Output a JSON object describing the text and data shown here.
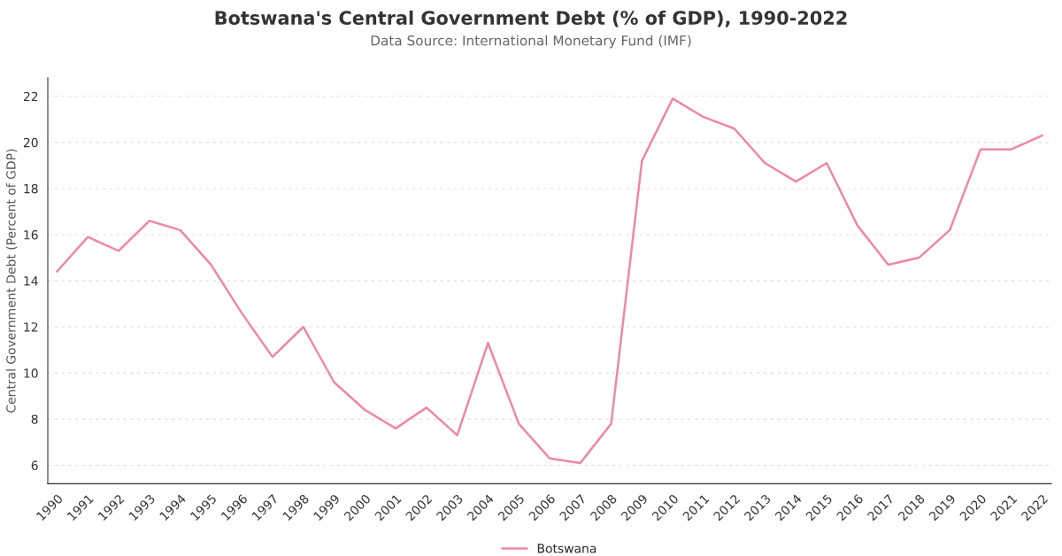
{
  "chart_data": {
    "type": "line",
    "title": "Botswana's Central Government Debt (% of GDP), 1990-2022",
    "subtitle": "Data Source: International Monetary Fund (IMF)",
    "ylabel": "Central Government Debt (Percent of GDP)",
    "categories": [
      "1990",
      "1991",
      "1992",
      "1993",
      "1994",
      "1995",
      "1996",
      "1997",
      "1998",
      "1999",
      "2000",
      "2001",
      "2002",
      "2003",
      "2004",
      "2005",
      "2006",
      "2007",
      "2008",
      "2009",
      "2010",
      "2011",
      "2012",
      "2013",
      "2014",
      "2015",
      "2016",
      "2017",
      "2018",
      "2019",
      "2020",
      "2021",
      "2022"
    ],
    "series": [
      {
        "name": "Botswana",
        "color": "#ef86aa",
        "values": [
          14.4,
          15.9,
          15.3,
          16.6,
          16.2,
          14.7,
          12.6,
          10.7,
          12.0,
          9.6,
          8.4,
          7.6,
          8.5,
          7.3,
          11.3,
          7.8,
          6.3,
          6.1,
          7.8,
          19.2,
          21.9,
          21.1,
          20.6,
          19.1,
          18.3,
          19.1,
          16.4,
          14.7,
          15.0,
          16.2,
          19.7,
          19.7,
          20.3
        ]
      }
    ],
    "ylim": [
      5.2,
      22.8
    ],
    "yticks": [
      6,
      8,
      10,
      12,
      14,
      16,
      18,
      20,
      22
    ],
    "grid": "y",
    "legend": "bottom",
    "marker": "none",
    "line_style": "solid"
  }
}
